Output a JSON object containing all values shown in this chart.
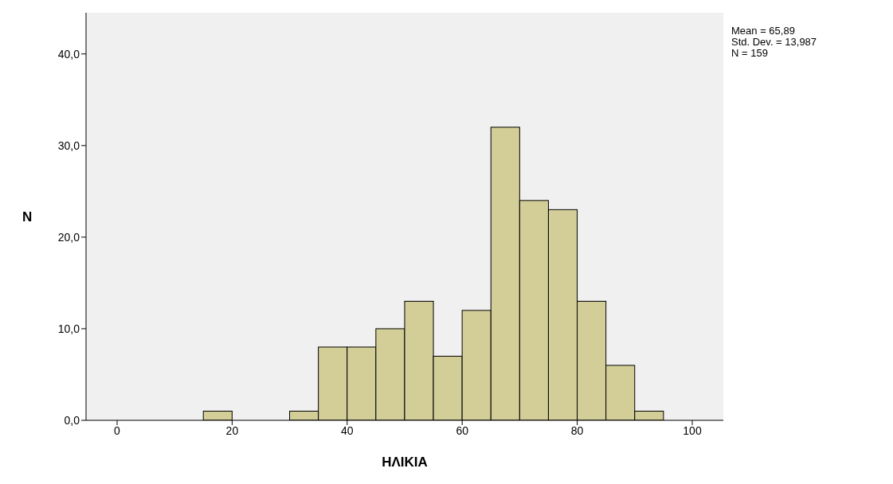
{
  "chart_data": {
    "type": "histogram",
    "xlabel": "ΗΛΙΚΙΑ",
    "ylabel": "N",
    "bins": [
      15,
      20,
      25,
      30,
      35,
      40,
      45,
      50,
      55,
      60,
      65,
      70,
      75,
      80,
      85,
      90,
      95
    ],
    "values": [
      1,
      0,
      0,
      1,
      8,
      8,
      10,
      13,
      7,
      12,
      32,
      24,
      23,
      13,
      6,
      1
    ],
    "color": "#d3ce97",
    "xlim": [
      -5.4,
      105.4
    ],
    "xticks": [
      0,
      20,
      40,
      60,
      80,
      100
    ],
    "ylim": [
      0,
      44.5
    ],
    "yticks": [
      {
        "value": 0,
        "label": "0,0"
      },
      {
        "value": 10,
        "label": "10,0"
      },
      {
        "value": 20,
        "label": "20,0"
      },
      {
        "value": 30,
        "label": "30,0"
      },
      {
        "value": 40,
        "label": "40,0"
      }
    ],
    "grid": false,
    "annotations": [
      "Mean = 65,89",
      "Std. Dev. = 13,987",
      "N = 159"
    ]
  }
}
